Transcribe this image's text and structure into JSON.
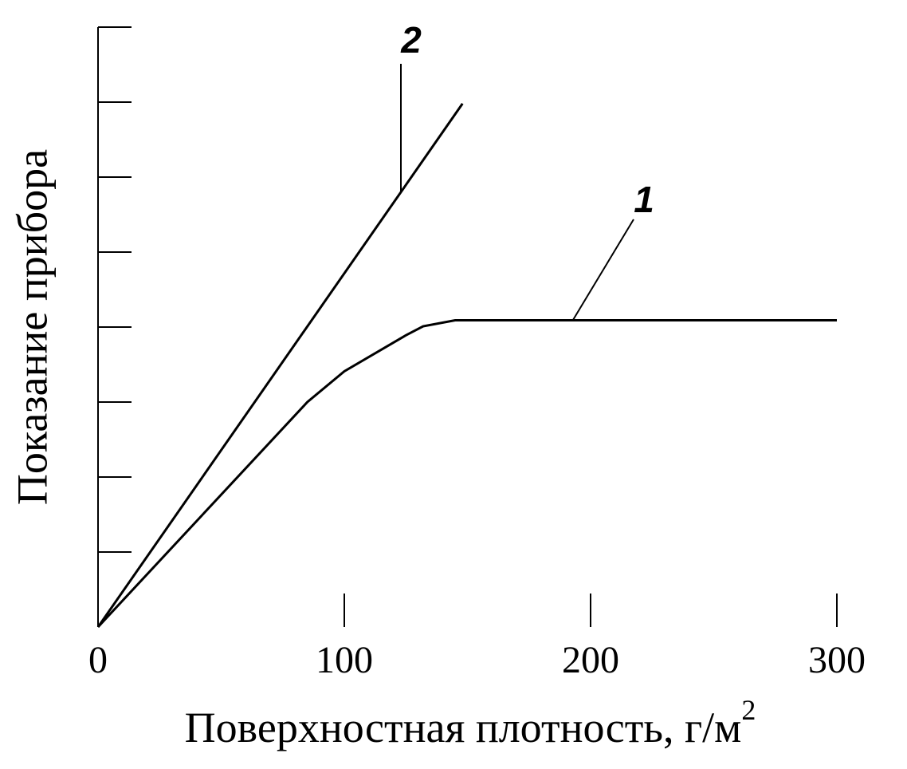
{
  "chart_data": {
    "type": "line",
    "xlabel": "Поверхностная плотность, г/м",
    "xlabel_superscript": "2",
    "ylabel": "Показание прибора",
    "xlim": [
      0,
      300
    ],
    "xticks": [
      0,
      100,
      200,
      300
    ],
    "ylim": [
      0,
      8
    ],
    "yticks": [
      1,
      2,
      3,
      4,
      5,
      6,
      7,
      8
    ],
    "ytick_labels": false,
    "series": [
      {
        "name": "1",
        "color": "#000000",
        "x": [
          0,
          85,
          100,
          125,
          132,
          145,
          300
        ],
        "values": [
          0,
          3.0,
          3.41,
          3.89,
          4.01,
          4.09,
          4.09
        ]
      },
      {
        "name": "2",
        "color": "#000000",
        "x": [
          0,
          148
        ],
        "values": [
          0,
          6.98
        ]
      }
    ]
  }
}
